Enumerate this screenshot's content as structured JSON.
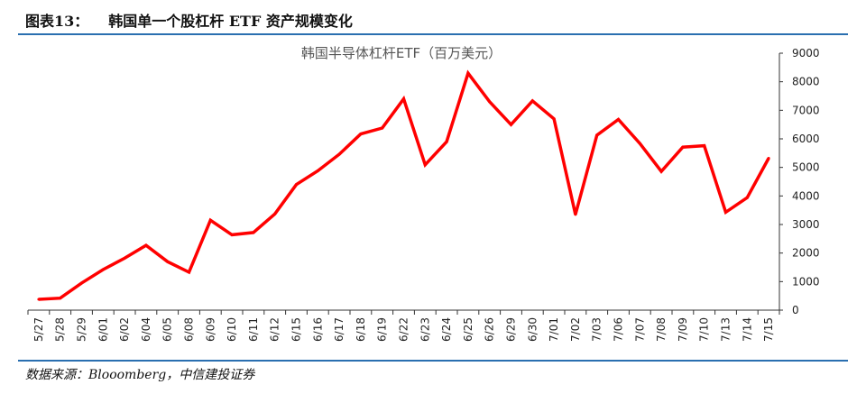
{
  "figure": {
    "label": "图表13：",
    "title": "韩国单一个股杠杆 ETF 资产规模变化",
    "source": "数据来源：Blooomberg，中信建投证券",
    "accent_color": "#2a6fb0"
  },
  "chart_data": {
    "type": "line",
    "title": "韩国半导体杠杆ETF（百万美元）",
    "xlabel": "",
    "ylabel": "",
    "ylim": [
      0,
      9000
    ],
    "yticks": [
      0,
      1000,
      2000,
      3000,
      4000,
      5000,
      6000,
      7000,
      8000,
      9000
    ],
    "y_axis_side": "right",
    "grid": false,
    "legend": "none",
    "line_color": "#ff0000",
    "categories": [
      "5/27",
      "5/28",
      "5/29",
      "6/01",
      "6/02",
      "6/04",
      "6/05",
      "6/08",
      "6/09",
      "6/10",
      "6/11",
      "6/12",
      "6/15",
      "6/16",
      "6/17",
      "6/18",
      "6/19",
      "6/22",
      "6/23",
      "6/24",
      "6/25",
      "6/26",
      "6/29",
      "6/30",
      "7/01",
      "7/02",
      "7/03",
      "7/06",
      "7/07",
      "7/08",
      "7/09",
      "7/10",
      "7/13",
      "7/14",
      "7/15"
    ],
    "series": [
      {
        "values": [
          380,
          420,
          950,
          1420,
          1820,
          2270,
          1700,
          1330,
          3150,
          2640,
          2720,
          3370,
          4400,
          4880,
          5460,
          6170,
          6380,
          7400,
          5090,
          5900,
          8300,
          7300,
          6500,
          7330,
          6700,
          3350,
          6130,
          6680,
          5840,
          4860,
          5710,
          5760,
          3430,
          3940,
          5320
        ]
      }
    ]
  }
}
